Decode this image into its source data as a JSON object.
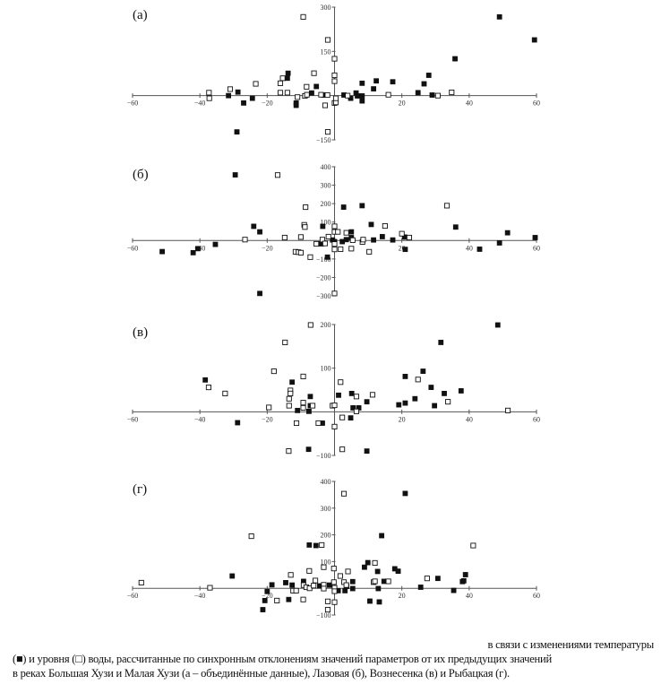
{
  "caption": {
    "line1": "в связи с изменениями температуры",
    "line2": "(■) и уровня (□) воды, рассчитанные по синхронным отклонениям значений параметров от их предыдущих значений",
    "line3": "в реках Большая Хузи и Малая Хузи (а – объединённые данные), Лазовая (б), Вознесенка (в) и Рыбацкая (г)."
  },
  "colors": {
    "axis": "#555555",
    "marker": "#111111",
    "open_fill": "#ffffff"
  },
  "chart_data": [
    {
      "type": "scatter",
      "label": "(а)",
      "xlim": [
        -60,
        60
      ],
      "ylim": [
        -150,
        300
      ],
      "xticks": [
        -60,
        -40,
        -20,
        20,
        40,
        60
      ],
      "yticks": [
        300,
        150,
        -150
      ],
      "grid": false,
      "series": [
        {
          "marker": "filled-square",
          "points": [
            [
              -29,
              -123
            ],
            [
              -31.5,
              0
            ],
            [
              -28.7,
              12
            ],
            [
              -27,
              -25
            ],
            [
              -24.4,
              -9
            ],
            [
              -13.8,
              76
            ],
            [
              -14,
              59
            ],
            [
              -11.4,
              -25
            ],
            [
              -11.4,
              -33
            ],
            [
              -6.8,
              9
            ],
            [
              -5.4,
              31
            ],
            [
              -3.2,
              2
            ],
            [
              2.8,
              2
            ],
            [
              4.8,
              -9
            ],
            [
              6.4,
              9
            ],
            [
              6.8,
              -1
            ],
            [
              8.2,
              -1
            ],
            [
              8.2,
              -18
            ],
            [
              8.2,
              42
            ],
            [
              11.6,
              23
            ],
            [
              12.4,
              50
            ],
            [
              17.3,
              47
            ],
            [
              24.8,
              10
            ],
            [
              26.6,
              40
            ],
            [
              28,
              69
            ],
            [
              29,
              2
            ],
            [
              35.8,
              125
            ],
            [
              49,
              267
            ],
            [
              59.4,
              189
            ]
          ]
        },
        {
          "marker": "open-square",
          "points": [
            [
              -37.3,
              10
            ],
            [
              -37.2,
              -9
            ],
            [
              -31,
              22
            ],
            [
              -23.4,
              40
            ],
            [
              -16.1,
              42
            ],
            [
              -15.4,
              59
            ],
            [
              -16.1,
              10
            ],
            [
              -14,
              10
            ],
            [
              -11,
              -5
            ],
            [
              -9.3,
              267
            ],
            [
              -8.8,
              -1
            ],
            [
              -8.2,
              3
            ],
            [
              -8.3,
              30
            ],
            [
              -6.1,
              76
            ],
            [
              -4,
              3
            ],
            [
              -2.8,
              -33
            ],
            [
              -2.1,
              2
            ],
            [
              -2,
              189
            ],
            [
              -2,
              -123
            ],
            [
              0,
              125
            ],
            [
              0,
              69
            ],
            [
              0,
              49
            ],
            [
              0,
              -25
            ],
            [
              0.4,
              -23
            ],
            [
              0.4,
              -9
            ],
            [
              3.9,
              0
            ],
            [
              16,
              3
            ],
            [
              30.7,
              0
            ],
            [
              34.8,
              11
            ]
          ]
        }
      ]
    },
    {
      "type": "scatter",
      "label": "(б)",
      "xlim": [
        -60,
        60
      ],
      "ylim": [
        -300,
        400
      ],
      "xticks": [
        -60,
        -40,
        -20,
        20,
        40,
        60
      ],
      "yticks": [
        400,
        300,
        200,
        100,
        -100,
        -200,
        -300
      ],
      "grid": false,
      "series": [
        {
          "marker": "filled-square",
          "points": [
            [
              -51.2,
              -60
            ],
            [
              -42,
              -66
            ],
            [
              -40.6,
              -44
            ],
            [
              -35.4,
              -21
            ],
            [
              -29.5,
              356
            ],
            [
              -24,
              77
            ],
            [
              -22.2,
              47
            ],
            [
              -22.2,
              -287
            ],
            [
              -3.5,
              77
            ],
            [
              -3.9,
              -18
            ],
            [
              -2.1,
              -90
            ],
            [
              -0.6,
              3
            ],
            [
              0,
              -6
            ],
            [
              2.7,
              181
            ],
            [
              2.3,
              -6
            ],
            [
              3.5,
              5
            ],
            [
              5,
              47
            ],
            [
              5,
              16
            ],
            [
              8.2,
              189
            ],
            [
              10.9,
              87
            ],
            [
              11.6,
              3
            ],
            [
              14.2,
              21
            ],
            [
              17.3,
              3
            ],
            [
              20.8,
              19
            ],
            [
              21,
              -48
            ],
            [
              36,
              73
            ],
            [
              43.1,
              -47
            ],
            [
              49,
              -13
            ],
            [
              51.4,
              42
            ],
            [
              59.6,
              16
            ]
          ]
        },
        {
          "marker": "open-square",
          "points": [
            [
              -26.6,
              5
            ],
            [
              -14.8,
              16
            ],
            [
              -16.9,
              355
            ],
            [
              -11.6,
              -61
            ],
            [
              -10.7,
              -63
            ],
            [
              -10,
              -66
            ],
            [
              -10,
              19
            ],
            [
              -9,
              85
            ],
            [
              -8.8,
              73
            ],
            [
              -8.6,
              181
            ],
            [
              -7.2,
              -90
            ],
            [
              -5.4,
              -18
            ],
            [
              -3.6,
              5
            ],
            [
              -2.8,
              -16
            ],
            [
              -1.8,
              21
            ],
            [
              0,
              77
            ],
            [
              0,
              47
            ],
            [
              1,
              47
            ],
            [
              0,
              -19
            ],
            [
              0,
              -48
            ],
            [
              0,
              -287
            ],
            [
              1.8,
              -47
            ],
            [
              3.5,
              42
            ],
            [
              5,
              -44
            ],
            [
              5.4,
              2
            ],
            [
              8.3,
              -8
            ],
            [
              8.5,
              5
            ],
            [
              10.3,
              -61
            ],
            [
              15,
              79
            ],
            [
              20,
              37
            ],
            [
              22.2,
              16
            ],
            [
              33.4,
              189
            ]
          ]
        }
      ]
    },
    {
      "type": "scatter",
      "label": "(в)",
      "xlim": [
        -60,
        60
      ],
      "ylim": [
        -100,
        200
      ],
      "xticks": [
        -60,
        -40,
        -20,
        20,
        40,
        60
      ],
      "yticks": [
        200,
        100,
        -100
      ],
      "grid": false,
      "series": [
        {
          "marker": "filled-square",
          "points": [
            [
              -38.4,
              73
            ],
            [
              -28.8,
              -25
            ],
            [
              -12.6,
              68
            ],
            [
              -11,
              3
            ],
            [
              -7.6,
              1
            ],
            [
              -7.2,
              35
            ],
            [
              -7.2,
              14
            ],
            [
              -7.7,
              -86
            ],
            [
              -3.6,
              -26
            ],
            [
              1.2,
              38
            ],
            [
              4.8,
              -14
            ],
            [
              5.1,
              42
            ],
            [
              5.5,
              9
            ],
            [
              7.2,
              9
            ],
            [
              9.6,
              23
            ],
            [
              9.6,
              -90
            ],
            [
              19.1,
              16
            ],
            [
              21,
              81
            ],
            [
              21,
              20
            ],
            [
              23.9,
              30
            ],
            [
              26.3,
              93
            ],
            [
              28.7,
              56
            ],
            [
              29.7,
              14
            ],
            [
              31.6,
              159
            ],
            [
              32.6,
              42
            ],
            [
              37.6,
              48
            ],
            [
              48.5,
              199
            ]
          ]
        },
        {
          "marker": "open-square",
          "points": [
            [
              -37.4,
              56
            ],
            [
              -32.5,
              42
            ],
            [
              -19.5,
              10
            ],
            [
              -18,
              93
            ],
            [
              -14.7,
              159
            ],
            [
              -13.5,
              30
            ],
            [
              -13.5,
              14
            ],
            [
              -13.1,
              49
            ],
            [
              -13.1,
              42
            ],
            [
              -13.6,
              -90
            ],
            [
              -11.3,
              -26
            ],
            [
              -9.3,
              81
            ],
            [
              -9.3,
              21
            ],
            [
              -9.3,
              9
            ],
            [
              -6.5,
              14
            ],
            [
              -7.1,
              199
            ],
            [
              -4.8,
              -26
            ],
            [
              -0.6,
              14
            ],
            [
              0,
              15
            ],
            [
              0,
              -34
            ],
            [
              1.8,
              68
            ],
            [
              2.3,
              -13
            ],
            [
              2.3,
              -86
            ],
            [
              6.5,
              35
            ],
            [
              6.5,
              1
            ],
            [
              11.3,
              39
            ],
            [
              24.8,
              74
            ],
            [
              33.7,
              23
            ],
            [
              51.5,
              3
            ]
          ]
        }
      ]
    },
    {
      "type": "scatter",
      "label": "(г)",
      "xlim": [
        -60,
        60
      ],
      "ylim": [
        -100,
        400
      ],
      "xticks": [
        -60,
        -40,
        -20,
        20,
        40,
        60
      ],
      "yticks": [
        400,
        300,
        200,
        100,
        -100
      ],
      "grid": false,
      "series": [
        {
          "marker": "filled-square",
          "points": [
            [
              -30.4,
              46
            ],
            [
              -21.3,
              -80
            ],
            [
              -20.7,
              -46
            ],
            [
              -20,
              -12
            ],
            [
              -18.6,
              13
            ],
            [
              -14.5,
              21
            ],
            [
              -13.6,
              -42
            ],
            [
              -12.6,
              12
            ],
            [
              -9.2,
              26
            ],
            [
              -7.5,
              162
            ],
            [
              -5.5,
              160
            ],
            [
              -4.4,
              9
            ],
            [
              -1.5,
              12
            ],
            [
              1.1,
              -9
            ],
            [
              3.1,
              -9
            ],
            [
              3.6,
              7
            ],
            [
              5.4,
              25
            ],
            [
              5.4,
              -1
            ],
            [
              8.9,
              79
            ],
            [
              9.9,
              96
            ],
            [
              10.5,
              -48
            ],
            [
              12.8,
              63
            ],
            [
              13,
              -1
            ],
            [
              13.3,
              -51
            ],
            [
              14,
              197
            ],
            [
              14.7,
              26
            ],
            [
              17.9,
              73
            ],
            [
              18.9,
              64
            ],
            [
              21,
              355
            ],
            [
              25.6,
              4
            ],
            [
              30.7,
              37
            ],
            [
              35.4,
              -8
            ],
            [
              38,
              25
            ],
            [
              38.4,
              28
            ],
            [
              38.9,
              51
            ]
          ]
        },
        {
          "marker": "open-square",
          "points": [
            [
              -57.4,
              21
            ],
            [
              -37,
              2
            ],
            [
              -24.7,
              195
            ],
            [
              -17.1,
              -46
            ],
            [
              -13,
              50
            ],
            [
              -12.3,
              -9
            ],
            [
              -11.4,
              -9
            ],
            [
              -9.3,
              -42
            ],
            [
              -9.2,
              12
            ],
            [
              -8.4,
              4
            ],
            [
              -7.5,
              65
            ],
            [
              -7.4,
              0
            ],
            [
              -6.2,
              10
            ],
            [
              -5.7,
              29
            ],
            [
              -3.8,
              162
            ],
            [
              -3.2,
              79
            ],
            [
              -3.2,
              13
            ],
            [
              -3.2,
              -1
            ],
            [
              -2,
              -49
            ],
            [
              -2,
              -80
            ],
            [
              -0.2,
              74
            ],
            [
              -0.2,
              23
            ],
            [
              0,
              2
            ],
            [
              0,
              -11
            ],
            [
              0,
              -52
            ],
            [
              1.7,
              46
            ],
            [
              2.8,
              354
            ],
            [
              2.8,
              23
            ],
            [
              3.5,
              12
            ],
            [
              4,
              63
            ],
            [
              11.6,
              23
            ],
            [
              12,
              26
            ],
            [
              12,
              95
            ],
            [
              16,
              26
            ],
            [
              27.5,
              37
            ],
            [
              41.2,
              160
            ]
          ]
        }
      ]
    }
  ]
}
